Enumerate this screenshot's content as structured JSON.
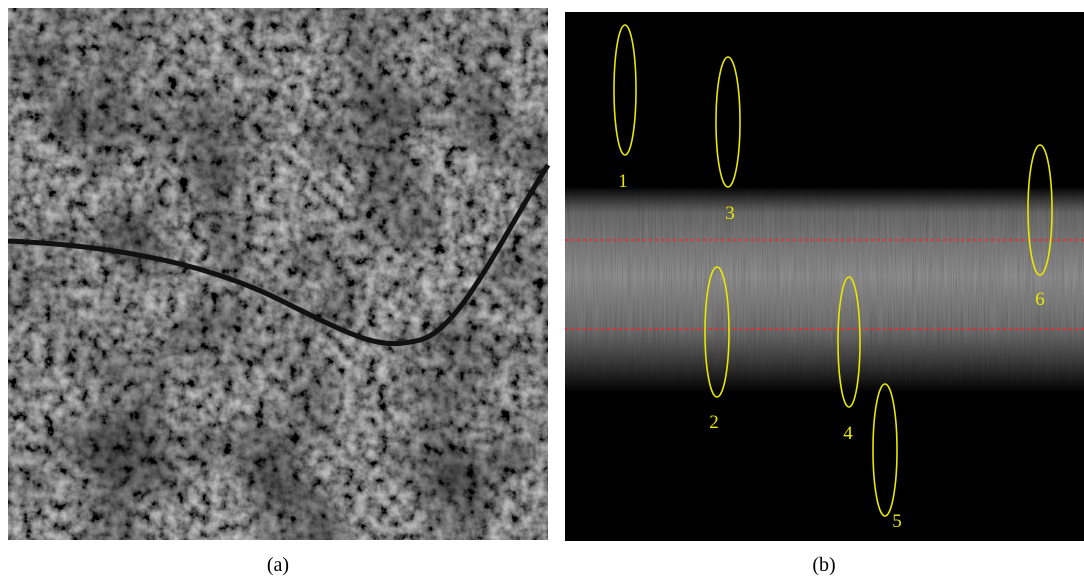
{
  "panels": [
    {
      "caption": "(a)"
    },
    {
      "caption": "(b)",
      "markers": [
        {
          "label": "1"
        },
        {
          "label": "2"
        },
        {
          "label": "3"
        },
        {
          "label": "4"
        },
        {
          "label": "5"
        },
        {
          "label": "6"
        }
      ]
    }
  ]
}
